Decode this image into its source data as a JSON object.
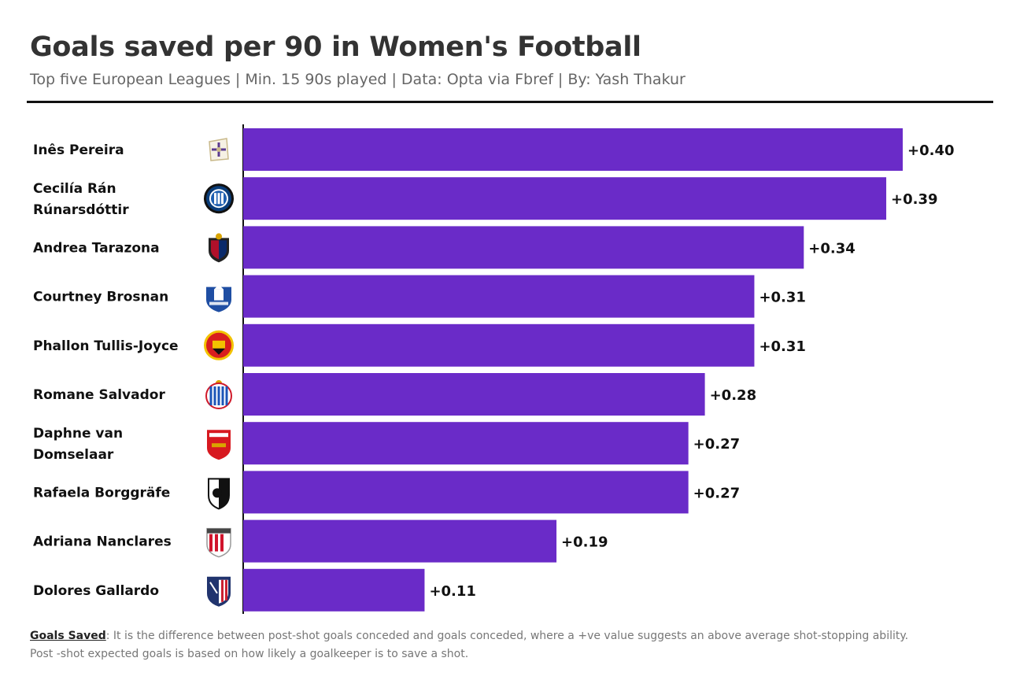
{
  "chart_data": {
    "type": "bar",
    "orientation": "horizontal",
    "title": "Goals saved per 90 in Women's Football",
    "subtitle": "Top five European Leagues | Min. 15 90s played | Data: Opta via Fbref | By: Yash Thakur",
    "bar_color": "#6a2bc8",
    "xlim": [
      0,
      0.42
    ],
    "categories": [
      "Inês Pereira",
      "Cecilía Rán Rúnarsdóttir",
      "Andrea Tarazona",
      "Courtney Brosnan",
      "Phallon Tullis-Joyce",
      "Romane Salvador",
      "Daphne van Domselaar",
      "Rafaela Borggräfe",
      "Adriana Nanclares",
      "Dolores Gallardo"
    ],
    "label_lines": [
      [
        "Inês Pereira"
      ],
      [
        "Cecilía Rán",
        "Rúnarsdóttir"
      ],
      [
        "Andrea Tarazona"
      ],
      [
        "Courtney Brosnan"
      ],
      [
        "Phallon Tullis-Joyce"
      ],
      [
        "Romane Salvador"
      ],
      [
        "Daphne van",
        "Domselaar"
      ],
      [
        "Rafaela Borggräfe"
      ],
      [
        "Adriana Nanclares"
      ],
      [
        "Dolores Gallardo"
      ]
    ],
    "values": [
      0.4,
      0.39,
      0.34,
      0.31,
      0.31,
      0.28,
      0.27,
      0.27,
      0.19,
      0.11
    ],
    "data_labels": [
      "+0.40",
      "+0.39",
      "+0.34",
      "+0.31",
      "+0.31",
      "+0.28",
      "+0.27",
      "+0.27",
      "+0.19",
      "+0.11"
    ],
    "club_badges": [
      {
        "name": "deportivo-badge",
        "primary": "#ffffff",
        "secondary": "#5b3a8f"
      },
      {
        "name": "inter-badge",
        "primary": "#0a3d7a",
        "secondary": "#111111"
      },
      {
        "name": "levante-badge",
        "primary": "#b0102a",
        "secondary": "#0a2a6a"
      },
      {
        "name": "everton-badge",
        "primary": "#1f4ea3",
        "secondary": "#ffffff"
      },
      {
        "name": "man-united-badge",
        "primary": "#d81e1e",
        "secondary": "#f2c200"
      },
      {
        "name": "espanyol-badge",
        "primary": "#1b55b8",
        "secondary": "#d01a2a"
      },
      {
        "name": "arsenal-badge",
        "primary": "#d71920",
        "secondary": "#ffffff"
      },
      {
        "name": "freiburg-badge",
        "primary": "#111111",
        "secondary": "#ffffff"
      },
      {
        "name": "athletic-badge",
        "primary": "#d0142c",
        "secondary": "#ffffff"
      },
      {
        "name": "atletico-badge",
        "primary": "#21346e",
        "secondary": "#cb2131"
      }
    ]
  },
  "footnote": {
    "term": "Goals Saved",
    "text": ": It is the difference between post-shot goals conceded and goals conceded, where a +ve value suggests an above average shot-stopping ability.",
    "text2": "Post -shot expected goals is based on how likely a goalkeeper is to save a shot."
  }
}
